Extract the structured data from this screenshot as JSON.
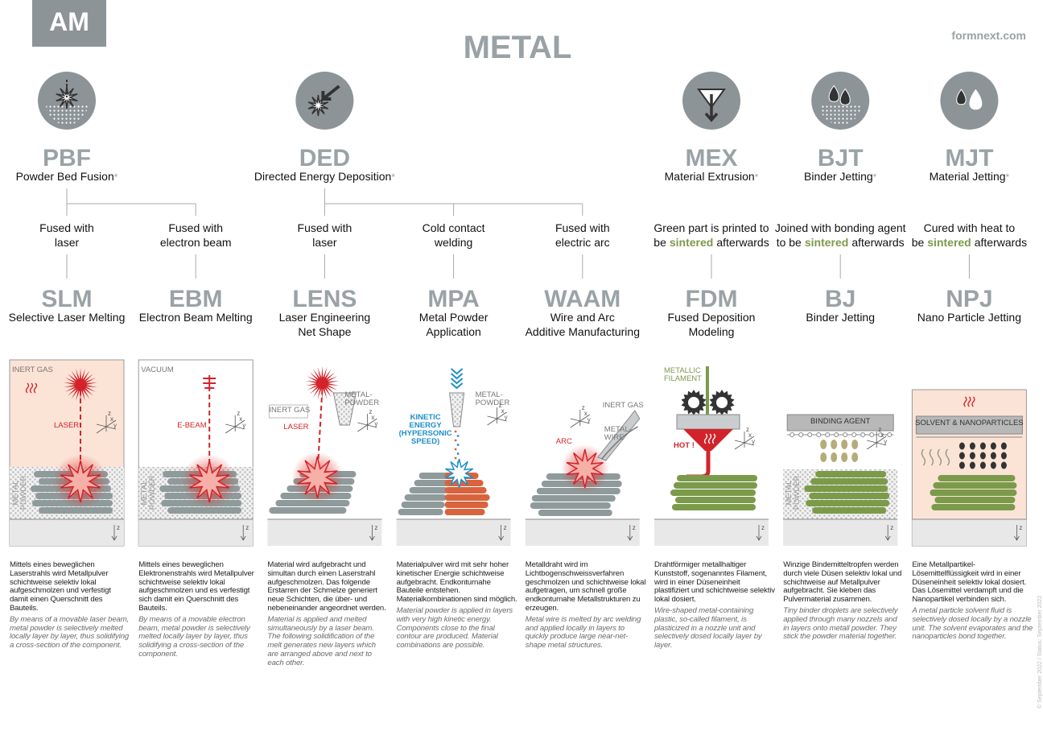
{
  "header": {
    "badge": "AM",
    "title": "METAL",
    "site": "formnext.com"
  },
  "axis": [
    "x",
    "y",
    "z"
  ],
  "side_note": "© September 2022 / Status: September 2022",
  "families": [
    {
      "code": "PBF",
      "name": "Powder Bed Fusion",
      "mark": "*"
    },
    {
      "code": "DED",
      "name": "Directed Energy Deposition",
      "mark": "*"
    },
    {
      "code": "MEX",
      "name": "Material Extrusion",
      "mark": "*"
    },
    {
      "code": "BJT",
      "name": "Binder Jetting",
      "mark": "*"
    },
    {
      "code": "MJT",
      "name": "Material Jetting",
      "mark": "*"
    }
  ],
  "processes": [
    {
      "method": [
        "Fused with",
        "laser"
      ],
      "acronym": "SLM",
      "full": [
        "Selective Laser Melting"
      ],
      "labels": [
        [
          "INERT GAS"
        ],
        [
          "LASER"
        ],
        [
          "METAL",
          "POWDER"
        ]
      ],
      "text_de": "Mittels eines beweglichen Laserstrahls wird Metallpulver schichtweise selektiv lokal aufgeschmolzen und verfestigt damit einen Querschnitt des Bauteils.",
      "text_en": "By means of a movable laser beam, metal powder is selectively melted locally layer by layer, thus solidifying a cross-section of the component."
    },
    {
      "method": [
        "Fused with",
        "electron beam"
      ],
      "acronym": "EBM",
      "full": [
        "Electron Beam Melting"
      ],
      "labels": [
        [
          "VACUUM"
        ],
        [
          "E-BEAM"
        ],
        [
          "METAL",
          "POWDER"
        ]
      ],
      "text_de": "Mittels eines beweglichen Elektronenstrahls wird Metallpulver schichtweise selektiv lokal aufgeschmolzen und es verfestigt sich damit ein Querschnitt des Bauteils.",
      "text_en": "By means of a movable electron beam, metal powder is selectively melted locally layer by layer, thus solidifying a cross-section of the component."
    },
    {
      "method": [
        "Fused with",
        "laser"
      ],
      "acronym": "LENS",
      "full": [
        "Laser Engineering",
        "Net Shape"
      ],
      "labels": [
        [
          "INERT GAS"
        ],
        [
          "METAL-",
          "POWDER"
        ],
        [
          "LASER"
        ]
      ],
      "text_de": "Material wird aufgebracht und simultan durch einen Laserstrahl aufgeschmolzen. Das folgende Erstarren der Schmelze generiert neue Schichten, die über- und nebeneinander angeordnet werden.",
      "text_en": "Material is applied and melted simultaneously by a laser beam. The following solidification of the melt generates new layers which are arranged above and next to each other."
    },
    {
      "method": [
        "Cold contact",
        "welding"
      ],
      "acronym": "MPA",
      "full": [
        "Metal Powder",
        "Application"
      ],
      "labels": [
        [
          "KINETIC",
          "ENERGY",
          "(HYPERSONIC",
          "SPEED)"
        ],
        [
          "METAL-",
          "POWDER"
        ]
      ],
      "text_de": "Materialpulver wird mit sehr hoher kinetischer Energie schichtweise aufgebracht. Endkonturnahe Bauteile entstehen. Materialkombinationen sind möglich.",
      "text_en": "Material powder is applied in layers with very high kinetic energy. Components close to the final contour are produced. Material combinations are possible."
    },
    {
      "method": [
        "Fused with",
        "electric arc"
      ],
      "acronym": "WAAM",
      "full": [
        "Wire and Arc",
        "Additive Manufacturing"
      ],
      "labels": [
        [
          "INERT GAS"
        ],
        [
          "METAL-",
          "WIRE"
        ],
        [
          "ARC"
        ]
      ],
      "text_de": "Metalldraht wird im Lichtbogenschweissverfahren geschmolzen und schichtweise lokal aufgetragen, um schnell große endkonturnahe Metallstrukturen zu erzeugen.",
      "text_en": "Metal wire is melted by arc welding and applied locally in layers to quickly produce large near-net-shape metal structures."
    },
    {
      "method": [
        "Green part is printed to",
        "be"
      ],
      "method_em": "sintered",
      "method_end": "afterwards",
      "acronym": "FDM",
      "full": [
        "Fused Deposition",
        "Modeling"
      ],
      "labels": [
        [
          "METALLIC",
          "FILAMENT"
        ],
        [
          "HOT !"
        ]
      ],
      "text_de": "Drahtförmiger metallhaltiger Kunststoff, sogenanntes Filament, wird in einer Düseneinheit plastifiziert und schichtweise selektiv lokal dosiert.",
      "text_en": "Wire-shaped metal-containing plastic, so-called filament, is plasticized in a nozzle unit and selectively dosed locally layer by layer."
    },
    {
      "method": [
        "Joined with bonding agent",
        "to be"
      ],
      "method_em": "sintered",
      "method_end": "afterwards",
      "acronym": "BJ",
      "full": [
        "Binder Jetting"
      ],
      "labels": [
        [
          "BINDING AGENT"
        ],
        [
          "METAL",
          "POWDER"
        ]
      ],
      "text_de": "Winzige Bindemitteltropfen werden durch viele Düsen selektiv lokal und schichtweise auf Metallpulver aufgebracht. Sie kleben das Pulvermaterial zusammen.",
      "text_en": "Tiny binder droplets are selectively applied through many nozzels and in layers onto metall powder. They stick the powder material together."
    },
    {
      "method": [
        "Cured with heat to",
        "be"
      ],
      "method_em": "sintered",
      "method_end": "afterwards",
      "acronym": "NPJ",
      "full": [
        "Nano Particle Jetting"
      ],
      "labels": [
        [
          "SOLVENT & NANOPARTICLES"
        ]
      ],
      "text_de": "Eine Metallpartikel-Lösemittelflüssigkeit wird in einer Düseneinheit selektiv lokal dosiert. Das Lösemittel verdampft und die Nanopartikel verbinden sich.",
      "text_en": "A metal particle solvent fluid is selectively dosed locally by a nozzle unit. The solvent evaporates and the nanoparticles bond together."
    }
  ]
}
